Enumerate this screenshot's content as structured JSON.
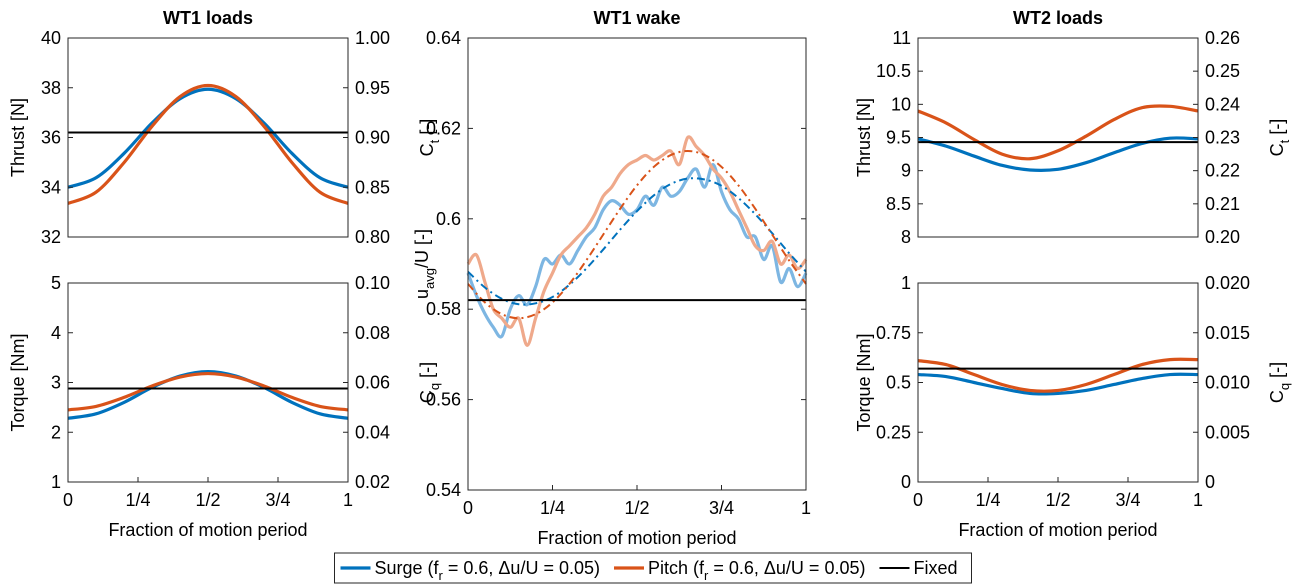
{
  "chart_data": [
    {
      "type": "line",
      "title": "WT1 loads",
      "ylabel": "Thrust [N]",
      "y2label": {
        "main": "C",
        "sub": "t",
        "rest": " [-]"
      },
      "xlim": [
        0,
        1
      ],
      "ylim": [
        32,
        40
      ],
      "yticks": [
        32,
        34,
        36,
        38,
        40
      ],
      "y2lim": [
        0.8,
        1.0
      ],
      "y2ticks": [
        {
          "value": 0.8,
          "label": "0.80"
        },
        0.85,
        {
          "value": 0.9,
          "label": "0.90"
        },
        0.95,
        {
          "value": 1.0,
          "label": "1.00"
        }
      ],
      "series": [
        {
          "color": "#0072BD",
          "x": [
            0,
            0.1,
            0.2,
            0.3,
            0.4,
            0.5,
            0.6,
            0.7,
            0.8,
            0.9,
            1
          ],
          "values": [
            34.0,
            34.38,
            35.36,
            36.58,
            37.56,
            37.94,
            37.56,
            36.58,
            35.36,
            34.38,
            34.0
          ]
        },
        {
          "color": "#D95319",
          "x": [
            0,
            0.1,
            0.2,
            0.3,
            0.4,
            0.5,
            0.6,
            0.7,
            0.8,
            0.9,
            1
          ],
          "values": [
            33.35,
            33.8,
            34.99,
            36.45,
            37.64,
            38.09,
            37.64,
            36.45,
            34.99,
            33.8,
            33.35
          ]
        },
        {
          "color": "#000000",
          "x": [
            0,
            1
          ],
          "values": [
            36.2,
            36.2
          ]
        }
      ]
    },
    {
      "type": "line",
      "ylabel": "Torque [Nm]",
      "y2label": {
        "main": "C",
        "sub": "q",
        "rest": " [-]"
      },
      "xlabel": "Fraction of motion period",
      "xlim": [
        0,
        1
      ],
      "xticks": [
        0,
        {
          "value": 0.25,
          "label": "1/4"
        },
        {
          "value": 0.5,
          "label": "1/2"
        },
        {
          "value": 0.75,
          "label": "3/4"
        },
        1
      ],
      "ylim": [
        1,
        5
      ],
      "yticks": [
        1,
        2,
        3,
        4,
        5
      ],
      "y2lim": [
        0.02,
        0.1
      ],
      "y2ticks": [
        0.02,
        0.04,
        0.06,
        0.08,
        {
          "value": 0.1,
          "label": "0.10"
        }
      ],
      "series": [
        {
          "color": "#0072BD",
          "x": [
            0,
            0.1,
            0.2,
            0.3,
            0.4,
            0.5,
            0.6,
            0.7,
            0.8,
            0.9,
            1
          ],
          "values": [
            2.28,
            2.37,
            2.6,
            2.9,
            3.13,
            3.22,
            3.13,
            2.9,
            2.6,
            2.37,
            2.28
          ]
        },
        {
          "color": "#D95319",
          "x": [
            0,
            0.1,
            0.2,
            0.3,
            0.4,
            0.5,
            0.6,
            0.7,
            0.8,
            0.9,
            1
          ],
          "values": [
            2.45,
            2.52,
            2.7,
            2.93,
            3.11,
            3.18,
            3.11,
            2.93,
            2.7,
            2.52,
            2.45
          ]
        },
        {
          "color": "#000000",
          "x": [
            0,
            1
          ],
          "values": [
            2.88,
            2.88
          ]
        }
      ]
    },
    {
      "type": "line",
      "title": "WT1 wake",
      "ylabel": {
        "main": "u",
        "sub": "avg",
        "rest": "/U [-]"
      },
      "xlabel": "Fraction of motion period",
      "xlim": [
        0,
        1
      ],
      "xticks": [
        0,
        {
          "value": 0.25,
          "label": "1/4"
        },
        {
          "value": 0.5,
          "label": "1/2"
        },
        {
          "value": 0.75,
          "label": "3/4"
        },
        1
      ],
      "ylim": [
        0.54,
        0.64
      ],
      "yticks": [
        0.54,
        0.56,
        0.58,
        0.6,
        0.62,
        0.64
      ],
      "series": [
        {
          "color": "#7DB6E2",
          "x": [
            0,
            0.025,
            0.05,
            0.075,
            0.1,
            0.125,
            0.15,
            0.175,
            0.2,
            0.225,
            0.25,
            0.275,
            0.3,
            0.325,
            0.35,
            0.375,
            0.4,
            0.425,
            0.45,
            0.475,
            0.5,
            0.525,
            0.55,
            0.575,
            0.6,
            0.625,
            0.65,
            0.675,
            0.7,
            0.725,
            0.75,
            0.775,
            0.8,
            0.825,
            0.85,
            0.875,
            0.9,
            0.925,
            0.95,
            0.975,
            1
          ],
          "values": [
            0.588,
            0.583,
            0.579,
            0.576,
            0.574,
            0.58,
            0.583,
            0.581,
            0.585,
            0.591,
            0.59,
            0.592,
            0.59,
            0.593,
            0.596,
            0.598,
            0.602,
            0.604,
            0.603,
            0.601,
            0.602,
            0.605,
            0.603,
            0.607,
            0.605,
            0.606,
            0.609,
            0.611,
            0.607,
            0.612,
            0.606,
            0.602,
            0.6,
            0.596,
            0.596,
            0.591,
            0.594,
            0.586,
            0.589,
            0.585,
            0.588
          ]
        },
        {
          "color": "#EFA98B",
          "x": [
            0,
            0.025,
            0.05,
            0.075,
            0.1,
            0.125,
            0.15,
            0.175,
            0.2,
            0.225,
            0.25,
            0.275,
            0.3,
            0.325,
            0.35,
            0.375,
            0.4,
            0.425,
            0.45,
            0.475,
            0.5,
            0.525,
            0.55,
            0.575,
            0.6,
            0.625,
            0.65,
            0.675,
            0.7,
            0.725,
            0.75,
            0.775,
            0.8,
            0.825,
            0.85,
            0.875,
            0.9,
            0.925,
            0.95,
            0.975,
            1
          ],
          "values": [
            0.59,
            0.592,
            0.586,
            0.58,
            0.578,
            0.576,
            0.578,
            0.572,
            0.578,
            0.584,
            0.588,
            0.592,
            0.594,
            0.596,
            0.598,
            0.601,
            0.605,
            0.607,
            0.61,
            0.612,
            0.613,
            0.614,
            0.613,
            0.614,
            0.615,
            0.612,
            0.618,
            0.616,
            0.614,
            0.611,
            0.609,
            0.606,
            0.602,
            0.598,
            0.594,
            0.593,
            0.595,
            0.59,
            0.592,
            0.589,
            0.591
          ]
        },
        {
          "color": "#0072BD",
          "dash": true,
          "x": [
            0,
            0.05,
            0.1,
            0.15,
            0.2,
            0.25,
            0.3,
            0.35,
            0.4,
            0.45,
            0.5,
            0.55,
            0.6,
            0.65,
            0.7,
            0.75,
            0.8,
            0.85,
            0.9,
            0.95,
            1
          ],
          "values": [
            0.5883,
            0.5848,
            0.5823,
            0.5811,
            0.5813,
            0.5827,
            0.5854,
            0.589,
            0.5932,
            0.5976,
            0.6017,
            0.6052,
            0.6077,
            0.6089,
            0.6087,
            0.6073,
            0.6046,
            0.601,
            0.5968,
            0.5924,
            0.5883
          ]
        },
        {
          "color": "#D95319",
          "dash": true,
          "x": [
            0,
            0.05,
            0.1,
            0.15,
            0.2,
            0.25,
            0.3,
            0.35,
            0.4,
            0.45,
            0.5,
            0.55,
            0.6,
            0.65,
            0.7,
            0.75,
            0.8,
            0.85,
            0.9,
            0.95,
            1
          ],
          "values": [
            0.5856,
            0.5815,
            0.5789,
            0.578,
            0.5789,
            0.5815,
            0.5856,
            0.5908,
            0.5965,
            0.6022,
            0.6074,
            0.6115,
            0.6141,
            0.615,
            0.6141,
            0.6115,
            0.6074,
            0.6022,
            0.5965,
            0.5908,
            0.5856
          ]
        },
        {
          "color": "#000000",
          "x": [
            0,
            1
          ],
          "values": [
            0.582,
            0.582
          ]
        }
      ]
    },
    {
      "type": "line",
      "title": "WT2 loads",
      "ylabel": "Thrust [N]",
      "y2label": {
        "main": "C",
        "sub": "t",
        "rest": " [-]"
      },
      "xlim": [
        0,
        1
      ],
      "ylim": [
        8,
        11
      ],
      "yticks": [
        8,
        8.5,
        9,
        9.5,
        10,
        10.5,
        11
      ],
      "y2lim": [
        0.2,
        0.26
      ],
      "y2ticks": [
        {
          "value": 0.2,
          "label": "0.20"
        },
        0.21,
        0.22,
        0.23,
        0.24,
        0.25,
        0.26
      ],
      "series": [
        {
          "color": "#0072BD",
          "x": [
            0,
            0.1,
            0.2,
            0.3,
            0.4,
            0.5,
            0.6,
            0.7,
            0.8,
            0.9,
            1
          ],
          "values": [
            9.48,
            9.37,
            9.22,
            9.08,
            9.01,
            9.02,
            9.12,
            9.27,
            9.41,
            9.49,
            9.48
          ]
        },
        {
          "color": "#D95319",
          "x": [
            0,
            0.1,
            0.2,
            0.3,
            0.4,
            0.5,
            0.6,
            0.7,
            0.8,
            0.9,
            1
          ],
          "values": [
            9.9,
            9.72,
            9.47,
            9.25,
            9.18,
            9.3,
            9.52,
            9.77,
            9.95,
            9.97,
            9.9
          ]
        },
        {
          "color": "#000000",
          "x": [
            0,
            1
          ],
          "values": [
            9.43,
            9.43
          ]
        }
      ]
    },
    {
      "type": "line",
      "ylabel": "Torque [Nm]",
      "y2label": {
        "main": "C",
        "sub": "q",
        "rest": " [-]"
      },
      "xlabel": "Fraction of motion period",
      "xlim": [
        0,
        1
      ],
      "xticks": [
        0,
        {
          "value": 0.25,
          "label": "1/4"
        },
        {
          "value": 0.5,
          "label": "1/2"
        },
        {
          "value": 0.75,
          "label": "3/4"
        },
        1
      ],
      "ylim": [
        0,
        1
      ],
      "yticks": [
        0,
        0.25,
        0.5,
        0.75,
        1
      ],
      "y2lim": [
        0,
        0.02
      ],
      "y2ticks": [
        0,
        0.005,
        {
          "value": 0.01,
          "label": "0.010"
        },
        0.015,
        {
          "value": 0.02,
          "label": "0.020"
        }
      ],
      "series": [
        {
          "color": "#0072BD",
          "x": [
            0,
            0.1,
            0.2,
            0.3,
            0.4,
            0.5,
            0.6,
            0.7,
            0.8,
            0.9,
            1
          ],
          "values": [
            0.54,
            0.53,
            0.5,
            0.47,
            0.445,
            0.445,
            0.46,
            0.49,
            0.52,
            0.54,
            0.54
          ]
        },
        {
          "color": "#D95319",
          "x": [
            0,
            0.1,
            0.2,
            0.3,
            0.4,
            0.5,
            0.6,
            0.7,
            0.8,
            0.9,
            1
          ],
          "values": [
            0.61,
            0.59,
            0.54,
            0.49,
            0.46,
            0.46,
            0.49,
            0.54,
            0.59,
            0.615,
            0.615
          ]
        },
        {
          "color": "#000000",
          "x": [
            0,
            1
          ],
          "values": [
            0.57,
            0.57
          ]
        }
      ]
    }
  ],
  "legend": {
    "entries": [
      {
        "color": "#0072BD",
        "label": {
          "main": "Surge (f",
          "sub": "r",
          "rest": " = 0.6, Δu/U = 0.05)"
        }
      },
      {
        "color": "#D95319",
        "label": {
          "main": "Pitch (f",
          "sub": "r",
          "rest": " = 0.6, Δu/U = 0.05)"
        }
      },
      {
        "color": "#000000",
        "label": {
          "main": "Fixed"
        }
      }
    ]
  }
}
